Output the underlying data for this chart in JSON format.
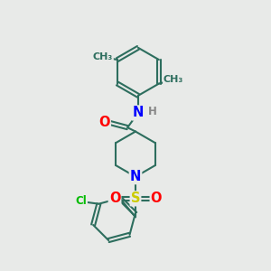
{
  "bg_color": "#e8eae8",
  "bond_color": "#2d6e5e",
  "bond_width": 1.5,
  "atom_colors": {
    "O": "#ff0000",
    "N": "#0000ff",
    "S": "#cccc00",
    "Cl": "#00bb00",
    "H": "#888888",
    "C": "#2d6e5e"
  },
  "font_size": 8.5
}
